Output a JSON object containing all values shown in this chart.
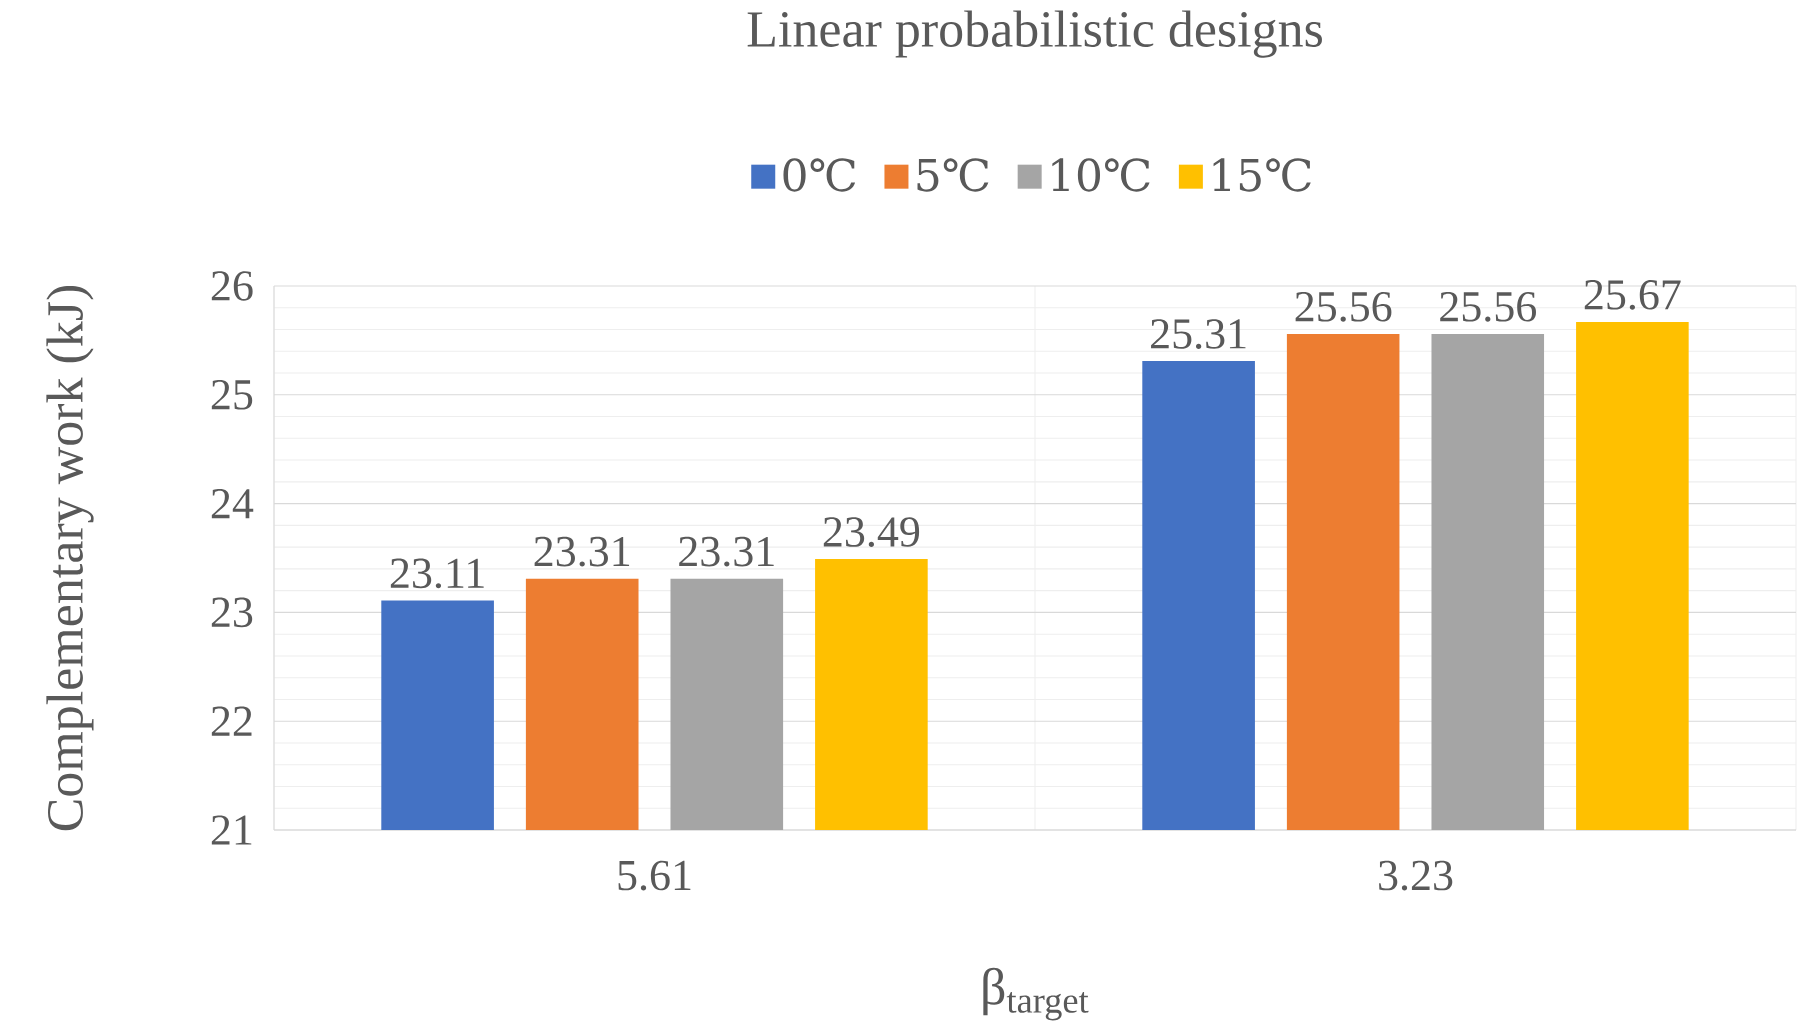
{
  "chart_data": {
    "type": "bar",
    "title": "Linear probabilistic designs",
    "xlabel": "β$_{target}$",
    "ylabel": "Complementary work (kJ)",
    "categories": [
      "5.61",
      "3.23"
    ],
    "series": [
      {
        "name": "0℃",
        "color": "#4472c4",
        "values": [
          23.11,
          25.31
        ]
      },
      {
        "name": "5℃",
        "color": "#ed7d31",
        "values": [
          23.31,
          25.56
        ]
      },
      {
        "name": "10℃",
        "color": "#a5a5a5",
        "values": [
          23.31,
          25.56
        ]
      },
      {
        "name": "15℃",
        "color": "#ffc000",
        "values": [
          23.49,
          25.67
        ]
      }
    ],
    "ylim": [
      21,
      26
    ],
    "yticks": [
      21,
      22,
      23,
      24,
      25,
      26
    ],
    "grid": true,
    "legend": "top",
    "data_labels": true
  }
}
